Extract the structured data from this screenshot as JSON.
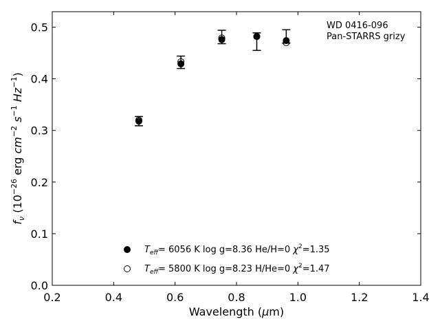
{
  "chart_data": {
    "type": "scatter",
    "xlabel": "Wavelength (μm)",
    "ylabel": "f_ν (10^-26 erg cm^-2 s^-1 Hz^-1)",
    "xlim": [
      0.2,
      1.4
    ],
    "ylim": [
      0.0,
      0.53
    ],
    "xticks": [
      "0.2",
      "0.4",
      "0.6",
      "0.8",
      "1.0",
      "1.2",
      "1.4"
    ],
    "yticks": [
      "0.0",
      "0.1",
      "0.2",
      "0.3",
      "0.4",
      "0.5"
    ],
    "grid": false,
    "legend_position": "bottom-center",
    "annotation": [
      "WD 0416-096",
      "Pan-STARRS grizy"
    ],
    "observed": {
      "x": [
        0.482,
        0.619,
        0.752,
        0.866,
        0.962
      ],
      "y": [
        0.318,
        0.432,
        0.481,
        0.472,
        0.482
      ],
      "yerr": [
        0.009,
        0.012,
        0.013,
        0.017,
        0.013
      ]
    },
    "series": [
      {
        "label": "T_eff=  6056 K  log g=8.36  He/H=0  χ²=1.35",
        "marker": "filled-circle",
        "x": [
          0.482,
          0.619,
          0.752,
          0.866,
          0.962
        ],
        "y": [
          0.318,
          0.429,
          0.476,
          0.482,
          0.474
        ]
      },
      {
        "label": "T_eff=  5800 K  log g=8.23  H/He=0  χ²=1.47",
        "marker": "open-circle",
        "x": [
          0.482,
          0.619,
          0.752,
          0.866,
          0.962
        ],
        "y": [
          0.32,
          0.433,
          0.479,
          0.482,
          0.47
        ]
      }
    ]
  }
}
